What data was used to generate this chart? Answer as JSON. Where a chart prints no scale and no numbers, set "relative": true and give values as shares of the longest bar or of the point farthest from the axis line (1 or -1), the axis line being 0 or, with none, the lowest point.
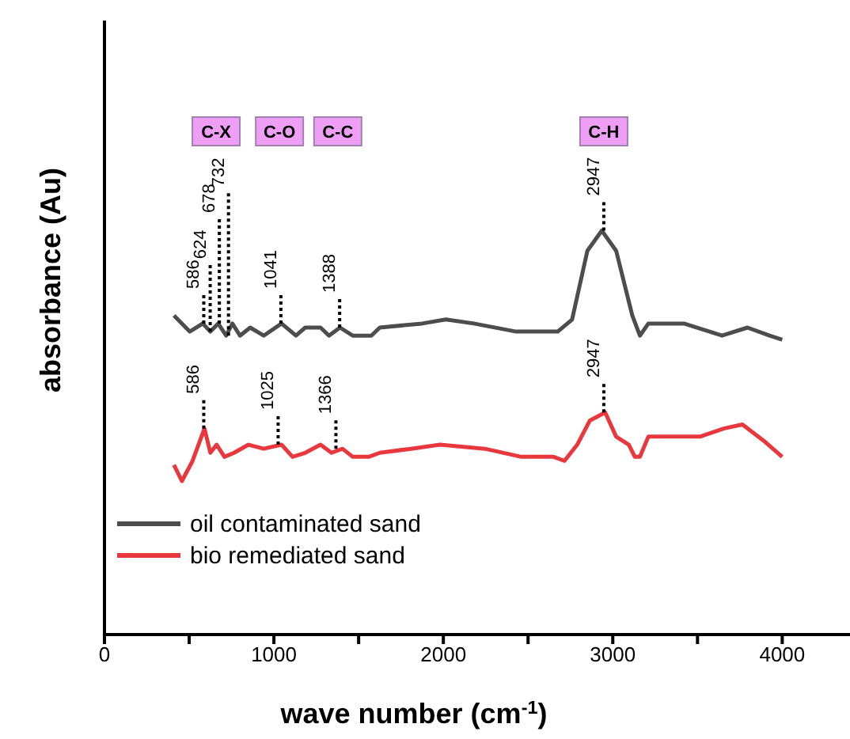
{
  "chart_data": {
    "type": "line",
    "relative": true,
    "xlabel": "wave number (cm$^{-1}$)",
    "ylabel": "absorbance (Au)",
    "xlim": [
      0,
      4400
    ],
    "xticks": [
      0,
      {
        "value": 500,
        "label": null
      },
      1000,
      {
        "value": 1500,
        "label": null
      },
      2000,
      {
        "value": 2500,
        "label": null
      },
      3000,
      {
        "value": 3500,
        "label": null
      },
      4000
    ],
    "legend": "bottom left",
    "marker": "none",
    "line_style": "solid",
    "grid": false,
    "series": [
      {
        "name": "oil contaminated sand",
        "color": "#4d4d4d",
        "x": [
          410,
          503,
          580,
          625,
          671,
          718,
          755,
          800,
          860,
          940,
          1045,
          1130,
          1185,
          1275,
          1325,
          1390,
          1465,
          1575,
          1625,
          1875,
          2015,
          2180,
          2430,
          2675,
          2760,
          2850,
          2935,
          3020,
          3115,
          3160,
          3210,
          3420,
          3645,
          3795,
          3925,
          4000
        ],
        "values": [
          0.79,
          0.75,
          0.77,
          0.75,
          0.77,
          0.74,
          0.77,
          0.74,
          0.76,
          0.74,
          0.77,
          0.74,
          0.76,
          0.76,
          0.74,
          0.76,
          0.74,
          0.74,
          0.76,
          0.77,
          0.78,
          0.77,
          0.75,
          0.75,
          0.78,
          0.95,
          1.0,
          0.95,
          0.79,
          0.74,
          0.77,
          0.77,
          0.74,
          0.76,
          0.74,
          0.73
        ]
      },
      {
        "name": "bio remediated sand",
        "color": "#e8383d",
        "x": [
          410,
          457,
          520,
          590,
          625,
          662,
          708,
          765,
          850,
          940,
          1045,
          1110,
          1185,
          1275,
          1340,
          1405,
          1465,
          1560,
          1625,
          1810,
          1980,
          2245,
          2460,
          2650,
          2715,
          2790,
          2865,
          2955,
          3020,
          3095,
          3130,
          3160,
          3210,
          3460,
          3515,
          3655,
          3765,
          3890,
          4000
        ],
        "values": [
          0.42,
          0.38,
          0.43,
          0.51,
          0.45,
          0.47,
          0.44,
          0.45,
          0.47,
          0.46,
          0.47,
          0.44,
          0.45,
          0.47,
          0.45,
          0.46,
          0.44,
          0.44,
          0.45,
          0.46,
          0.47,
          0.46,
          0.44,
          0.44,
          0.43,
          0.47,
          0.53,
          0.55,
          0.49,
          0.47,
          0.44,
          0.44,
          0.49,
          0.49,
          0.49,
          0.51,
          0.52,
          0.48,
          0.44
        ]
      }
    ],
    "annotations": [
      {
        "text": "586",
        "x": 586,
        "y": 0.77
      },
      {
        "text": "624",
        "x": 624,
        "y": 0.75
      },
      {
        "text": "678",
        "x": 678,
        "y": 0.77
      },
      {
        "text": "732",
        "x": 732,
        "y": 0.74
      },
      {
        "text": "1041",
        "x": 1041,
        "y": 0.77
      },
      {
        "text": "1388",
        "x": 1388,
        "y": 0.76
      },
      {
        "text": "2947",
        "x": 2947,
        "y": 1.0
      },
      {
        "text": "586",
        "x": 586,
        "y": 0.51
      },
      {
        "text": "1025",
        "x": 1025,
        "y": 0.47
      },
      {
        "text": "1366",
        "x": 1366,
        "y": 0.46
      },
      {
        "text": "2947",
        "x": 2947,
        "y": 0.55
      },
      "C-X",
      "C-O",
      "C-C",
      "C-H"
    ]
  }
}
